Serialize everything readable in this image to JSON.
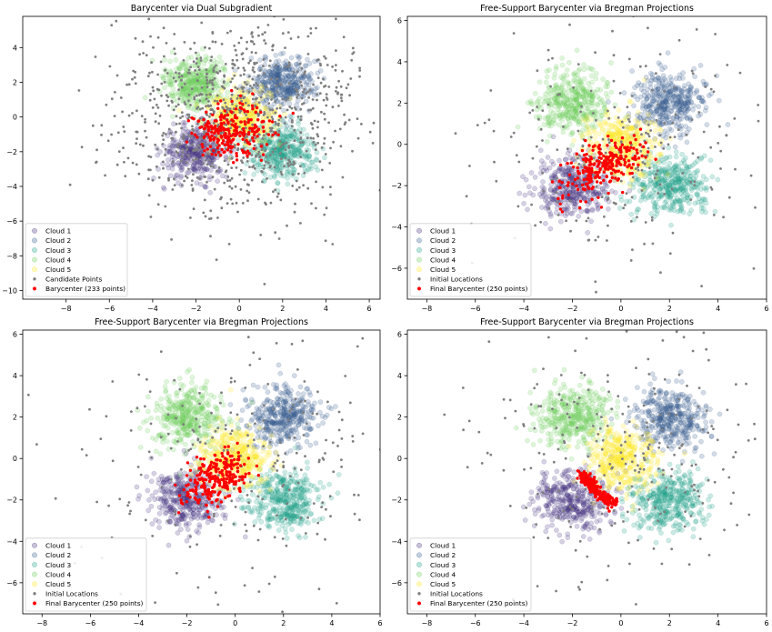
{
  "figure": {
    "cloud_colors": [
      "#46327e",
      "#365c8d",
      "#1fa187",
      "#6ccd5a",
      "#fde725"
    ],
    "cloud_centers": [
      [
        -2,
        -2
      ],
      [
        2,
        2
      ],
      [
        2,
        -2
      ],
      [
        -2,
        2
      ],
      [
        0,
        0
      ]
    ],
    "candidate_color": "#7f7f7f",
    "barycenter_color": "#ff0000"
  },
  "chart_data": [
    {
      "type": "scatter",
      "title": "Barycenter via Dual Subgradient",
      "xlim": [
        -10,
        6.5
      ],
      "ylim": [
        -10.5,
        5.8
      ],
      "xticks": [
        -8,
        -6,
        -4,
        -2,
        0,
        2,
        4,
        6
      ],
      "yticks": [
        -10,
        -8,
        -6,
        -4,
        -2,
        0,
        2,
        4
      ],
      "legend_position": "lower-left",
      "series": [
        {
          "name": "Cloud 1",
          "center": [
            -2,
            -2
          ],
          "std": 0.75
        },
        {
          "name": "Cloud 2",
          "center": [
            2,
            2
          ],
          "std": 0.75
        },
        {
          "name": "Cloud 3",
          "center": [
            2,
            -2
          ],
          "std": 0.75
        },
        {
          "name": "Cloud 4",
          "center": [
            -2,
            2
          ],
          "std": 0.75
        },
        {
          "name": "Cloud 5",
          "center": [
            0,
            0
          ],
          "std": 0.75
        },
        {
          "name": "Candidate Points",
          "center": [
            0,
            0
          ],
          "std": 2.8
        },
        {
          "name": "Barycenter (233 points)",
          "center": [
            -1,
            -1
          ],
          "std": 0.9
        }
      ]
    },
    {
      "type": "scatter",
      "title": "Free-Support Barycenter via Bregman Projections",
      "xlim": [
        -8.8,
        6
      ],
      "ylim": [
        -7.5,
        6.2
      ],
      "xticks": [
        -8,
        -6,
        -4,
        -2,
        0,
        2,
        4,
        6
      ],
      "yticks": [
        -6,
        -4,
        -2,
        0,
        2,
        4,
        6
      ],
      "legend_position": "lower-left",
      "series": [
        {
          "name": "Cloud 1",
          "center": [
            -2,
            -2
          ],
          "std": 0.75
        },
        {
          "name": "Cloud 2",
          "center": [
            2,
            2
          ],
          "std": 0.75
        },
        {
          "name": "Cloud 3",
          "center": [
            2,
            -2
          ],
          "std": 0.75
        },
        {
          "name": "Cloud 4",
          "center": [
            -2,
            2
          ],
          "std": 0.75
        },
        {
          "name": "Cloud 5",
          "center": [
            0,
            0
          ],
          "std": 0.75
        },
        {
          "name": "Initial Locations",
          "center": [
            0,
            0
          ],
          "std": 3
        },
        {
          "name": "Final Barycenter (250 points)",
          "center": [
            -1,
            -1
          ],
          "std": 0.75
        }
      ]
    },
    {
      "type": "scatter",
      "title": "Free-Support Barycenter via Bregman Projections",
      "xlim": [
        -8.8,
        6
      ],
      "ylim": [
        -7.5,
        6.2
      ],
      "xticks": [
        -8,
        -6,
        -4,
        -2,
        0,
        2,
        4,
        6
      ],
      "yticks": [
        -6,
        -4,
        -2,
        0,
        2,
        4,
        6
      ],
      "legend_position": "lower-left",
      "series": [
        {
          "name": "Cloud 1",
          "center": [
            -2,
            -2
          ],
          "std": 0.75
        },
        {
          "name": "Cloud 2",
          "center": [
            2,
            2
          ],
          "std": 0.75
        },
        {
          "name": "Cloud 3",
          "center": [
            2,
            -2
          ],
          "std": 0.75
        },
        {
          "name": "Cloud 4",
          "center": [
            -2,
            2
          ],
          "std": 0.75
        },
        {
          "name": "Cloud 5",
          "center": [
            0,
            0
          ],
          "std": 0.75
        },
        {
          "name": "Initial Locations",
          "center": [
            0,
            0
          ],
          "std": 3
        },
        {
          "name": "Final Barycenter (250 points)",
          "center": [
            -0.8,
            -0.8
          ],
          "std": 0.8
        }
      ]
    },
    {
      "type": "scatter",
      "title": "Free-Support Barycenter via Bregman Projections",
      "xlim": [
        -8.8,
        6
      ],
      "ylim": [
        -7.5,
        6.2
      ],
      "xticks": [
        -8,
        -6,
        -4,
        -2,
        0,
        2,
        4,
        6
      ],
      "yticks": [
        -6,
        -4,
        -2,
        0,
        2,
        4,
        6
      ],
      "legend_position": "lower-left",
      "series": [
        {
          "name": "Cloud 1",
          "center": [
            -2,
            -2
          ],
          "std": 0.75
        },
        {
          "name": "Cloud 2",
          "center": [
            2,
            2
          ],
          "std": 0.75
        },
        {
          "name": "Cloud 3",
          "center": [
            2,
            -2
          ],
          "std": 0.75
        },
        {
          "name": "Cloud 4",
          "center": [
            -2,
            2
          ],
          "std": 0.75
        },
        {
          "name": "Cloud 5",
          "center": [
            0,
            0
          ],
          "std": 0.75
        },
        {
          "name": "Initial Locations",
          "center": [
            0,
            0
          ],
          "std": 3
        },
        {
          "name": "Final Barycenter (250 points)",
          "center": [
            -1.2,
            -1.4
          ],
          "std": 0.25
        }
      ]
    }
  ]
}
